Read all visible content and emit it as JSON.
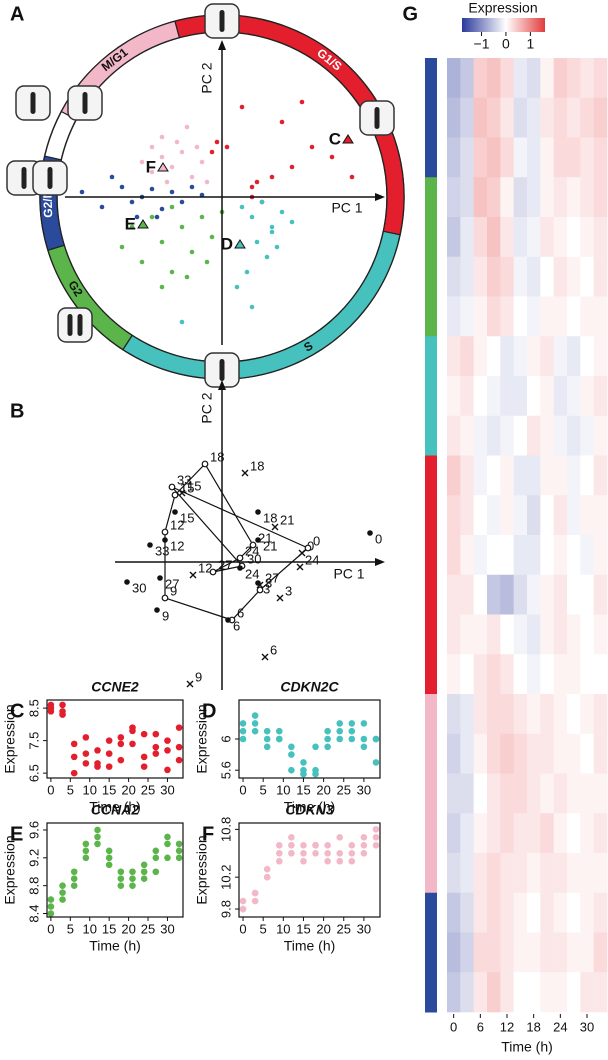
{
  "chart_data": [
    {
      "type": "cycle",
      "panel": "A",
      "xlabel": "PC 1",
      "ylabel": "PC 2",
      "xlim": [
        -1.57,
        1.63
      ],
      "ylim": [
        -1.48,
        1.57
      ],
      "phases": [
        {
          "name": "G1/S",
          "color": "#e41f2d"
        },
        {
          "name": "S",
          "color": "#47c1be"
        },
        {
          "name": "G2",
          "color": "#5cb54a"
        },
        {
          "name": "G2/M",
          "color": "#2a4a9c"
        },
        {
          "name": "M/G1",
          "color": "#f2b8c8"
        }
      ],
      "series": [
        {
          "color": "#e41f2d",
          "x": [
            0.3,
            0.5,
            0.7,
            0.9,
            1.1,
            0.3,
            0.35,
            0.4,
            -0.1,
            -0.05,
            0.05,
            0.6,
            0.8,
            1.3,
            0.2
          ],
          "y": [
            0.1,
            0.2,
            0.3,
            0.5,
            0.4,
            0.0,
            0.15,
            -0.05,
            0.45,
            0.55,
            0.5,
            0.75,
            0.95,
            0.2,
            0.9
          ]
        },
        {
          "color": "#f2b8c8",
          "x": [
            -0.8,
            -0.7,
            -0.6,
            -0.5,
            -0.4,
            -0.3,
            -0.2,
            -0.6,
            -0.45,
            -0.35,
            -0.55,
            -0.25,
            -0.15,
            -0.7
          ],
          "y": [
            0.35,
            0.25,
            0.4,
            0.3,
            0.45,
            0.2,
            0.35,
            0.6,
            0.55,
            0.7,
            0.15,
            0.5,
            0.15,
            0.5
          ]
        },
        {
          "color": "#2a4a9c",
          "x": [
            -1.4,
            -1.2,
            -1.0,
            -0.9,
            -0.8,
            -0.7,
            -0.6,
            -0.5,
            -0.4,
            -0.3,
            -0.2,
            -1.1,
            -0.85,
            -0.65
          ],
          "y": [
            0.05,
            -0.1,
            0.1,
            -0.05,
            0.0,
            0.08,
            -0.12,
            0.05,
            -0.05,
            0.1,
            0.02,
            0.2,
            -0.2,
            -0.2
          ]
        },
        {
          "color": "#5cb54a",
          "x": [
            -1.0,
            -0.9,
            -0.8,
            -0.7,
            -0.6,
            -0.5,
            -0.4,
            -0.3,
            -0.2,
            -0.1,
            0.0,
            -0.6,
            -0.35,
            -0.15,
            -0.5
          ],
          "y": [
            -0.5,
            -0.3,
            -0.65,
            -0.2,
            -0.45,
            -0.75,
            -0.3,
            -0.55,
            -0.2,
            -0.4,
            -0.15,
            -0.9,
            -0.8,
            -0.65,
            -0.1
          ]
        },
        {
          "color": "#47c1be",
          "x": [
            0.2,
            0.3,
            0.4,
            0.5,
            0.6,
            0.7,
            0.35,
            0.45,
            0.25,
            0.55,
            0.15,
            0.3,
            0.5,
            -0.4
          ],
          "y": [
            -0.1,
            -0.2,
            -0.05,
            -0.3,
            -0.15,
            -0.25,
            -0.45,
            -0.6,
            -0.75,
            -0.5,
            -0.9,
            -1.1,
            -0.35,
            -1.25
          ]
        }
      ],
      "annotations": [
        {
          "text": "C",
          "x": 1.26,
          "y": 0.57,
          "color": "#e41f2d"
        },
        {
          "text": "D",
          "x": 0.18,
          "y": -0.48,
          "color": "#47c1be"
        },
        {
          "text": "E",
          "x": -0.79,
          "y": -0.28,
          "color": "#5cb54a"
        },
        {
          "text": "F",
          "x": -0.59,
          "y": 0.29,
          "color": "#f2b8c8"
        }
      ]
    },
    {
      "type": "trajectory",
      "panel": "B",
      "xlabel": "PC 1",
      "ylabel": "PC 2",
      "xlim": [
        -2.14,
        3.26
      ],
      "ylim": [
        -2.56,
        3.64
      ],
      "series": [
        {
          "marker": "x",
          "labels": [
            0,
            3,
            6,
            9,
            12,
            15,
            18,
            21,
            24,
            27
          ],
          "x": [
            1.6,
            1.16,
            0.86,
            -0.64,
            -0.58,
            -0.8,
            0.46,
            1.06,
            1.56,
            0.76
          ],
          "y": [
            0.18,
            -0.72,
            -1.9,
            -2.44,
            -0.26,
            1.38,
            1.78,
            0.7,
            -0.1,
            -0.46
          ]
        },
        {
          "marker": "o",
          "connect": true,
          "labels": [
            0,
            3,
            6,
            9,
            12,
            15,
            18,
            21,
            24,
            27,
            30,
            33
          ],
          "x": [
            1.72,
            0.76,
            0.2,
            -1.14,
            -1.14,
            -0.94,
            -0.34,
            0.62,
            0.36,
            -0.18,
            0.4,
            -1.0
          ],
          "y": [
            0.28,
            -0.56,
            -1.16,
            -0.72,
            0.6,
            1.34,
            1.96,
            0.34,
            0.08,
            -0.2,
            -0.08,
            1.5
          ]
        },
        {
          "marker": "dot",
          "labels": [
            0,
            3,
            6,
            9,
            12,
            15,
            18,
            21,
            24,
            27,
            30,
            33
          ],
          "x": [
            2.96,
            0.72,
            0.12,
            -1.3,
            -1.14,
            -0.94,
            0.72,
            0.72,
            0.36,
            -1.24,
            -1.9,
            -1.44
          ],
          "y": [
            0.58,
            -0.42,
            -1.16,
            -0.96,
            0.44,
            1.0,
            1.0,
            0.44,
            -0.12,
            -0.32,
            -0.4,
            0.34
          ]
        }
      ]
    },
    {
      "type": "scatter",
      "panel": "C",
      "title": "CCNE2",
      "xlabel": "Time (h)",
      "ylabel": "Expression",
      "color": "#e41f2d",
      "xlim": [
        -1,
        34
      ],
      "ylim": [
        6.35,
        8.75
      ],
      "xticks": [
        0,
        5,
        10,
        15,
        20,
        25,
        30
      ],
      "yticks": [
        6.5,
        7.5,
        8.5
      ],
      "x": [
        0,
        0,
        0,
        3,
        3,
        3,
        6,
        6,
        6,
        9,
        9,
        9,
        12,
        12,
        12,
        15,
        15,
        15,
        18,
        18,
        18,
        21,
        21,
        21,
        24,
        24,
        24,
        27,
        27,
        27,
        30,
        30,
        30,
        33,
        33,
        33
      ],
      "y": [
        8.6,
        8.5,
        8.4,
        8.6,
        8.4,
        8.3,
        6.5,
        7.0,
        7.4,
        6.8,
        7.1,
        7.6,
        6.7,
        7.2,
        6.8,
        7.1,
        7.5,
        6.7,
        7.4,
        7.6,
        6.9,
        7.8,
        7.9,
        7.4,
        7.0,
        7.7,
        6.7,
        7.1,
        7.3,
        7.7,
        6.6,
        7.2,
        7.5,
        6.9,
        7.3,
        7.9
      ]
    },
    {
      "type": "scatter",
      "panel": "D",
      "title": "CDKN2C",
      "xlabel": "Time (h)",
      "ylabel": "Expression",
      "color": "#47c1be",
      "xlim": [
        -1,
        34
      ],
      "ylim": [
        5.5,
        6.5
      ],
      "xticks": [
        0,
        5,
        10,
        15,
        20,
        25,
        30
      ],
      "yticks": [
        5.6,
        6.0
      ],
      "x": [
        0,
        0,
        0,
        3,
        3,
        3,
        6,
        6,
        6,
        9,
        9,
        9,
        12,
        12,
        12,
        15,
        15,
        15,
        18,
        18,
        18,
        21,
        21,
        21,
        24,
        24,
        24,
        27,
        27,
        27,
        30,
        30,
        30,
        33,
        33,
        33
      ],
      "y": [
        6.2,
        6.1,
        6.0,
        6.3,
        6.2,
        6.1,
        6.1,
        6.0,
        5.9,
        6.1,
        6.0,
        6.0,
        5.8,
        5.6,
        5.9,
        5.55,
        5.6,
        5.7,
        5.55,
        5.9,
        5.6,
        6.0,
        5.9,
        6.1,
        6.2,
        6.1,
        6.0,
        6.2,
        6.1,
        6.0,
        6.2,
        6.0,
        5.9,
        6.0,
        5.7,
        6.0
      ]
    },
    {
      "type": "scatter",
      "panel": "E",
      "title": "CCNA2",
      "xlabel": "Time (h)",
      "ylabel": "Expression",
      "color": "#5cb54a",
      "xlim": [
        -1,
        34
      ],
      "ylim": [
        8.35,
        9.7
      ],
      "xticks": [
        0,
        5,
        10,
        15,
        20,
        25,
        30
      ],
      "yticks": [
        8.4,
        8.8,
        9.2,
        9.6
      ],
      "x": [
        0,
        0,
        0,
        3,
        3,
        3,
        6,
        6,
        6,
        9,
        9,
        9,
        12,
        12,
        12,
        15,
        15,
        15,
        18,
        18,
        18,
        21,
        21,
        21,
        24,
        24,
        24,
        27,
        27,
        27,
        30,
        30,
        30,
        33,
        33,
        33
      ],
      "y": [
        8.4,
        8.5,
        8.6,
        8.6,
        8.7,
        8.8,
        8.8,
        8.9,
        9.0,
        9.2,
        9.4,
        9.3,
        9.6,
        9.5,
        9.4,
        9.3,
        9.1,
        9.2,
        8.9,
        9.0,
        8.8,
        9.0,
        8.9,
        8.8,
        9.1,
        9.0,
        8.9,
        9.2,
        9.0,
        9.3,
        9.4,
        9.5,
        9.2,
        9.3,
        9.2,
        9.4
      ]
    },
    {
      "type": "scatter",
      "panel": "F",
      "title": "CDKN3",
      "xlabel": "Time (h)",
      "ylabel": "Expression",
      "color": "#f2b8c8",
      "xlim": [
        -1,
        34
      ],
      "ylim": [
        9.7,
        10.88
      ],
      "xticks": [
        0,
        5,
        10,
        15,
        20,
        25,
        30
      ],
      "yticks": [
        9.8,
        10.2,
        10.8
      ],
      "x": [
        0,
        0,
        0,
        3,
        3,
        3,
        6,
        6,
        6,
        9,
        9,
        9,
        12,
        12,
        12,
        15,
        15,
        15,
        18,
        18,
        18,
        21,
        21,
        21,
        24,
        24,
        24,
        27,
        27,
        27,
        30,
        30,
        30,
        33,
        33,
        33
      ],
      "y": [
        9.8,
        9.9,
        9.8,
        10.0,
        9.9,
        10.0,
        10.3,
        10.2,
        10.2,
        10.4,
        10.6,
        10.5,
        10.6,
        10.7,
        10.5,
        10.6,
        10.5,
        10.4,
        10.5,
        10.6,
        10.6,
        10.5,
        10.4,
        10.6,
        10.7,
        10.4,
        10.5,
        10.6,
        10.5,
        10.4,
        10.7,
        10.6,
        10.5,
        10.8,
        10.6,
        10.7
      ]
    },
    {
      "type": "heatmap",
      "panel": "G",
      "colorbar_label": "Expression",
      "xlabel": "Time (h)",
      "colors": [
        "#2b3a9a",
        "#ffffff",
        "#e23b3b"
      ],
      "clim": [
        -1.8,
        1.6
      ],
      "cticks": [
        {
          "value": -1,
          "label": "−1"
        },
        0,
        1
      ],
      "x": [
        0,
        3,
        6,
        9,
        12,
        15,
        18,
        21,
        24,
        27,
        30,
        33
      ],
      "xlim": [
        -1.5,
        34.5
      ],
      "xticks": [
        0,
        6,
        12,
        18,
        24,
        30
      ],
      "row_colors": [
        "#2a4a9c",
        "#2a4a9c",
        "#2a4a9c",
        "#5cb54a",
        "#5cb54a",
        "#5cb54a",
        "#5cb54a",
        "#47c1be",
        "#47c1be",
        "#47c1be",
        "#e41f2d",
        "#e41f2d",
        "#e41f2d",
        "#e41f2d",
        "#e41f2d",
        "#e41f2d",
        "#f2b8c8",
        "#f2b8c8",
        "#f2b8c8",
        "#f2b8c8",
        "#f2b8c8",
        "#2a4a9c",
        "#2a4a9c",
        "#2a4a9c"
      ],
      "values": [
        [
          -0.7,
          -0.5,
          0.4,
          0.5,
          0.3,
          -0.2,
          -0.3,
          0.1,
          0.4,
          0.3,
          0.2,
          0.3
        ],
        [
          -0.6,
          -0.4,
          0.5,
          0.4,
          0.2,
          -0.3,
          -0.2,
          0.2,
          0.3,
          0.2,
          0.3,
          0.4
        ],
        [
          -0.5,
          -0.3,
          0.4,
          0.5,
          0.3,
          -0.1,
          -0.2,
          0.1,
          0.3,
          0.3,
          0.2,
          0.3
        ],
        [
          -0.4,
          -0.3,
          0.5,
          0.4,
          0.1,
          -0.3,
          -0.2,
          0.1,
          0.2,
          0.1,
          0.2,
          0.3
        ],
        [
          -0.5,
          -0.2,
          0.3,
          0.5,
          0.2,
          -0.2,
          -0.1,
          0.2,
          0.1,
          0.0,
          0.1,
          0.2
        ],
        [
          -0.3,
          -0.2,
          0.2,
          0.4,
          0.3,
          -0.1,
          -0.2,
          0.0,
          0.2,
          0.1,
          0.0,
          0.2
        ],
        [
          -0.2,
          -0.1,
          0.1,
          0.3,
          0.2,
          0.0,
          -0.1,
          0.1,
          0.1,
          0.0,
          0.1,
          0.1
        ],
        [
          0.2,
          0.3,
          0.1,
          0.0,
          -0.2,
          -0.1,
          0.1,
          0.2,
          -0.1,
          -0.2,
          0.0,
          0.1
        ],
        [
          0.1,
          0.2,
          0.0,
          -0.1,
          -0.2,
          -0.2,
          0.0,
          0.1,
          -0.2,
          -0.1,
          0.1,
          0.2
        ],
        [
          0.2,
          0.1,
          -0.1,
          -0.2,
          -0.1,
          0.0,
          0.2,
          0.1,
          -0.1,
          -0.2,
          -0.1,
          0.1
        ],
        [
          0.4,
          0.2,
          -0.1,
          0.0,
          0.1,
          -0.2,
          -0.2,
          0.1,
          0.1,
          -0.1,
          0.0,
          0.2
        ],
        [
          0.3,
          0.2,
          0.0,
          -0.1,
          0.1,
          -0.1,
          -0.3,
          0.0,
          0.2,
          -0.1,
          0.1,
          0.1
        ],
        [
          0.3,
          0.1,
          -0.1,
          0.0,
          0.0,
          -0.2,
          -0.2,
          0.0,
          0.1,
          0.0,
          -0.1,
          0.1
        ],
        [
          0.2,
          0.2,
          0.0,
          -0.5,
          -0.6,
          -0.3,
          -0.1,
          0.1,
          0.2,
          0.0,
          0.0,
          0.2
        ],
        [
          0.2,
          0.1,
          0.1,
          0.2,
          0.0,
          -0.1,
          -0.2,
          0.1,
          0.2,
          0.1,
          0.0,
          0.1
        ],
        [
          0.1,
          0.0,
          0.2,
          0.3,
          0.2,
          0.0,
          -0.1,
          0.0,
          0.1,
          0.1,
          0.0,
          0.0
        ],
        [
          -0.3,
          -0.2,
          0.2,
          0.3,
          0.3,
          0.2,
          0.1,
          0.2,
          0.1,
          0.0,
          0.1,
          0.2
        ],
        [
          -0.4,
          -0.2,
          0.1,
          0.3,
          0.4,
          0.3,
          0.2,
          0.2,
          0.1,
          0.1,
          0.0,
          0.2
        ],
        [
          -0.3,
          -0.3,
          0.0,
          0.2,
          0.3,
          0.3,
          0.2,
          0.1,
          0.2,
          0.1,
          0.1,
          0.1
        ],
        [
          -0.4,
          -0.2,
          0.1,
          0.2,
          0.3,
          0.2,
          0.2,
          0.3,
          0.1,
          0.0,
          0.1,
          0.2
        ],
        [
          -0.3,
          -0.2,
          0.2,
          0.3,
          0.2,
          0.2,
          0.1,
          0.2,
          0.2,
          0.1,
          0.1,
          0.1
        ],
        [
          -0.5,
          -0.3,
          0.2,
          0.3,
          0.2,
          0.1,
          0.0,
          0.2,
          0.1,
          0.0,
          0.1,
          0.2
        ],
        [
          -0.6,
          -0.4,
          0.3,
          0.3,
          0.2,
          0.1,
          0.1,
          0.2,
          0.2,
          0.1,
          0.1,
          0.3
        ],
        [
          -0.5,
          -0.3,
          0.2,
          0.4,
          0.2,
          0.0,
          0.0,
          0.1,
          0.1,
          0.0,
          0.2,
          0.2
        ]
      ]
    }
  ]
}
